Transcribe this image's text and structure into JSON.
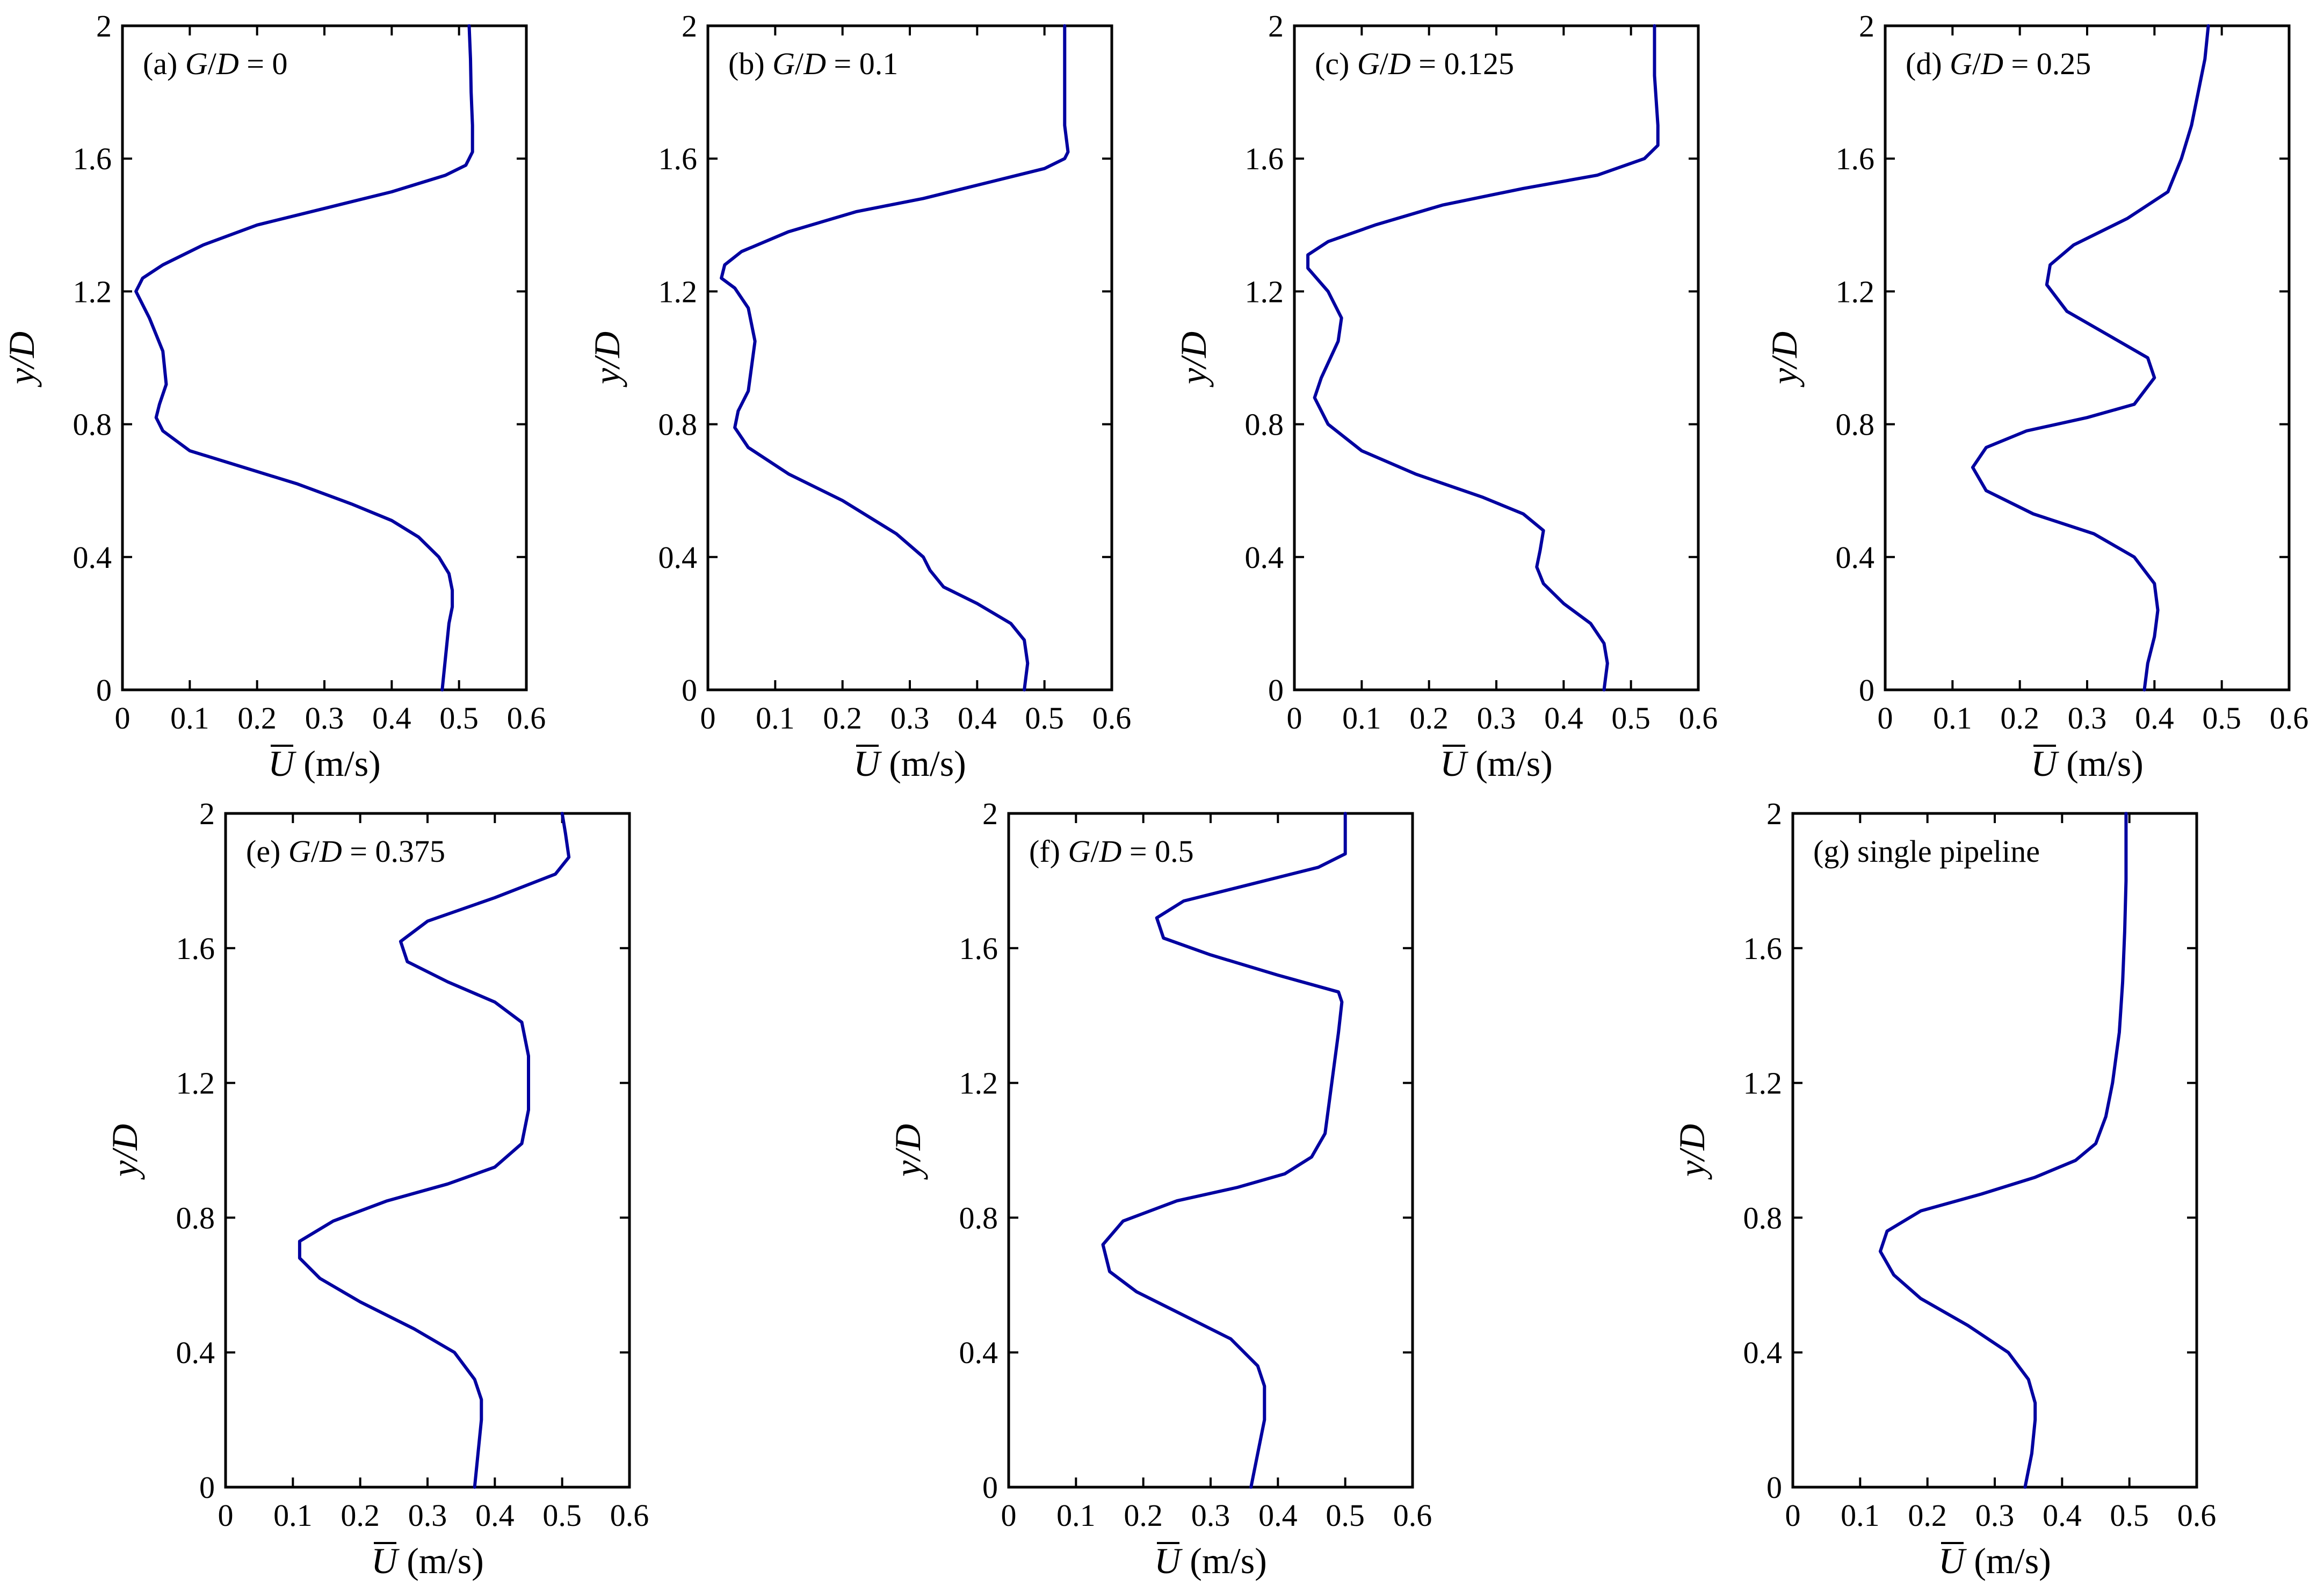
{
  "colors": {
    "curve": "#0000a0",
    "axes": "#000000"
  },
  "axis_text": {
    "x_unit": "(m/s)",
    "x_symbol": "U",
    "y_label": "y/D"
  },
  "chart_data": [
    {
      "type": "line",
      "title": "(a) G/D = 0",
      "title_prefix": "(a)",
      "title_suffix": "= 0",
      "xlabel": "Ū (m/s)",
      "ylabel": "y/D",
      "xlim": [
        0,
        0.6
      ],
      "ylim": [
        0,
        2
      ],
      "xticks": [
        "0",
        "0.1",
        "0.2",
        "0.3",
        "0.4",
        "0.5",
        "0.6"
      ],
      "yticks": [
        "0",
        "0.4",
        "0.8",
        "1.2",
        "1.6",
        "2"
      ],
      "grid": false,
      "series": [
        {
          "x": [
            0.475,
            0.48,
            0.485,
            0.49,
            0.49,
            0.485,
            0.47,
            0.44,
            0.4,
            0.34,
            0.26,
            0.18,
            0.1,
            0.06,
            0.05,
            0.055,
            0.065,
            0.06,
            0.04,
            0.02,
            0.03,
            0.06,
            0.12,
            0.2,
            0.3,
            0.4,
            0.48,
            0.51,
            0.515,
            0.52,
            0.52,
            0.518,
            0.517,
            0.515
          ],
          "y": [
            0.0,
            0.1,
            0.2,
            0.25,
            0.3,
            0.35,
            0.4,
            0.46,
            0.51,
            0.56,
            0.62,
            0.67,
            0.72,
            0.78,
            0.82,
            0.86,
            0.92,
            1.02,
            1.12,
            1.2,
            1.24,
            1.28,
            1.34,
            1.4,
            1.45,
            1.5,
            1.55,
            1.58,
            1.6,
            1.62,
            1.7,
            1.8,
            1.9,
            2.0
          ]
        }
      ]
    },
    {
      "type": "line",
      "title": "(b) G/D = 0.1",
      "title_prefix": "(b)",
      "title_suffix": "= 0.1",
      "xlabel": "Ū (m/s)",
      "ylabel": "y/D",
      "xlim": [
        0,
        0.6
      ],
      "ylim": [
        0,
        2
      ],
      "xticks": [
        "0",
        "0.1",
        "0.2",
        "0.3",
        "0.4",
        "0.5",
        "0.6"
      ],
      "yticks": [
        "0",
        "0.4",
        "0.8",
        "1.2",
        "1.6",
        "2"
      ],
      "grid": false,
      "series": [
        {
          "x": [
            0.47,
            0.475,
            0.47,
            0.45,
            0.4,
            0.35,
            0.33,
            0.32,
            0.28,
            0.2,
            0.12,
            0.06,
            0.04,
            0.045,
            0.06,
            0.07,
            0.06,
            0.04,
            0.02,
            0.025,
            0.05,
            0.12,
            0.22,
            0.32,
            0.42,
            0.5,
            0.53,
            0.535,
            0.53,
            0.53,
            0.53
          ],
          "y": [
            0.0,
            0.08,
            0.15,
            0.2,
            0.26,
            0.31,
            0.36,
            0.4,
            0.47,
            0.57,
            0.65,
            0.73,
            0.79,
            0.84,
            0.9,
            1.05,
            1.15,
            1.21,
            1.24,
            1.28,
            1.32,
            1.38,
            1.44,
            1.48,
            1.53,
            1.57,
            1.6,
            1.62,
            1.7,
            1.85,
            2.0
          ]
        }
      ]
    },
    {
      "type": "line",
      "title": "(c) G/D = 0.125",
      "title_prefix": "(c)",
      "title_suffix": "= 0.125",
      "xlabel": "Ū (m/s)",
      "ylabel": "y/D",
      "xlim": [
        0,
        0.6
      ],
      "ylim": [
        0,
        2
      ],
      "xticks": [
        "0",
        "0.1",
        "0.2",
        "0.3",
        "0.4",
        "0.5",
        "0.6"
      ],
      "yticks": [
        "0",
        "0.4",
        "0.8",
        "1.2",
        "1.6",
        "2"
      ],
      "grid": false,
      "series": [
        {
          "x": [
            0.46,
            0.465,
            0.46,
            0.44,
            0.4,
            0.37,
            0.36,
            0.365,
            0.37,
            0.34,
            0.28,
            0.18,
            0.1,
            0.05,
            0.03,
            0.04,
            0.065,
            0.07,
            0.05,
            0.02,
            0.02,
            0.05,
            0.12,
            0.22,
            0.34,
            0.45,
            0.52,
            0.54,
            0.54,
            0.535,
            0.535
          ],
          "y": [
            0.0,
            0.08,
            0.14,
            0.2,
            0.26,
            0.32,
            0.37,
            0.42,
            0.48,
            0.53,
            0.58,
            0.65,
            0.72,
            0.8,
            0.88,
            0.94,
            1.05,
            1.12,
            1.2,
            1.27,
            1.31,
            1.35,
            1.4,
            1.46,
            1.51,
            1.55,
            1.6,
            1.64,
            1.7,
            1.85,
            2.0
          ]
        }
      ]
    },
    {
      "type": "line",
      "title": "(d) G/D = 0.25",
      "title_prefix": "(d)",
      "title_suffix": "= 0.25",
      "xlabel": "Ū (m/s)",
      "ylabel": "y/D",
      "xlim": [
        0,
        0.6
      ],
      "ylim": [
        0,
        2
      ],
      "xticks": [
        "0",
        "0.1",
        "0.2",
        "0.3",
        "0.4",
        "0.5",
        "0.6"
      ],
      "yticks": [
        "0",
        "0.4",
        "0.8",
        "1.2",
        "1.6",
        "2"
      ],
      "grid": false,
      "series": [
        {
          "x": [
            0.385,
            0.39,
            0.4,
            0.405,
            0.4,
            0.37,
            0.31,
            0.22,
            0.15,
            0.13,
            0.15,
            0.21,
            0.3,
            0.37,
            0.4,
            0.39,
            0.33,
            0.27,
            0.24,
            0.245,
            0.28,
            0.36,
            0.42,
            0.44,
            0.455,
            0.465,
            0.475,
            0.48
          ],
          "y": [
            0.0,
            0.08,
            0.16,
            0.24,
            0.32,
            0.4,
            0.47,
            0.53,
            0.6,
            0.67,
            0.73,
            0.78,
            0.82,
            0.86,
            0.94,
            1.0,
            1.07,
            1.14,
            1.22,
            1.28,
            1.34,
            1.42,
            1.5,
            1.6,
            1.7,
            1.8,
            1.9,
            2.0
          ]
        }
      ]
    },
    {
      "type": "line",
      "title": "(e) G/D = 0.375",
      "title_prefix": "(e)",
      "title_suffix": "= 0.375",
      "xlabel": "Ū (m/s)",
      "ylabel": "y/D",
      "xlim": [
        0,
        0.6
      ],
      "ylim": [
        0,
        2
      ],
      "xticks": [
        "0",
        "0.1",
        "0.2",
        "0.3",
        "0.4",
        "0.5",
        "0.6"
      ],
      "yticks": [
        "0",
        "0.4",
        "0.8",
        "1.2",
        "1.6",
        "2"
      ],
      "grid": false,
      "series": [
        {
          "x": [
            0.37,
            0.375,
            0.38,
            0.38,
            0.37,
            0.34,
            0.28,
            0.2,
            0.14,
            0.11,
            0.11,
            0.16,
            0.24,
            0.33,
            0.4,
            0.44,
            0.45,
            0.45,
            0.44,
            0.4,
            0.33,
            0.27,
            0.26,
            0.3,
            0.4,
            0.49,
            0.51,
            0.505,
            0.5
          ],
          "y": [
            0.0,
            0.1,
            0.2,
            0.26,
            0.32,
            0.4,
            0.47,
            0.55,
            0.62,
            0.68,
            0.73,
            0.79,
            0.85,
            0.9,
            0.95,
            1.02,
            1.12,
            1.28,
            1.38,
            1.44,
            1.5,
            1.56,
            1.62,
            1.68,
            1.75,
            1.82,
            1.87,
            1.94,
            2.0
          ]
        }
      ]
    },
    {
      "type": "line",
      "title": "(f) G/D = 0.5",
      "title_prefix": "(f)",
      "title_suffix": "= 0.5",
      "xlabel": "Ū (m/s)",
      "ylabel": "y/D",
      "xlim": [
        0,
        0.6
      ],
      "ylim": [
        0,
        2
      ],
      "xticks": [
        "0",
        "0.1",
        "0.2",
        "0.3",
        "0.4",
        "0.5",
        "0.6"
      ],
      "yticks": [
        "0",
        "0.4",
        "0.8",
        "1.2",
        "1.6",
        "2"
      ],
      "grid": false,
      "series": [
        {
          "x": [
            0.36,
            0.37,
            0.38,
            0.38,
            0.37,
            0.33,
            0.26,
            0.19,
            0.15,
            0.14,
            0.17,
            0.25,
            0.34,
            0.41,
            0.45,
            0.47,
            0.48,
            0.49,
            0.495,
            0.49,
            0.4,
            0.3,
            0.23,
            0.22,
            0.26,
            0.36,
            0.46,
            0.5,
            0.5,
            0.5
          ],
          "y": [
            0.0,
            0.1,
            0.2,
            0.3,
            0.36,
            0.44,
            0.51,
            0.58,
            0.64,
            0.72,
            0.79,
            0.85,
            0.89,
            0.93,
            0.98,
            1.05,
            1.2,
            1.35,
            1.44,
            1.47,
            1.52,
            1.58,
            1.63,
            1.69,
            1.74,
            1.79,
            1.84,
            1.88,
            1.94,
            2.0
          ]
        }
      ]
    },
    {
      "type": "line",
      "title": "(g) single pipeline",
      "title_prefix": "(g) single pipeline",
      "title_suffix": "",
      "xlabel": "Ū (m/s)",
      "ylabel": "y/D",
      "xlim": [
        0,
        0.6
      ],
      "ylim": [
        0,
        2
      ],
      "xticks": [
        "0",
        "0.1",
        "0.2",
        "0.3",
        "0.4",
        "0.5",
        "0.6"
      ],
      "yticks": [
        "0",
        "0.4",
        "0.8",
        "1.2",
        "1.6",
        "2"
      ],
      "grid": false,
      "series": [
        {
          "x": [
            0.345,
            0.355,
            0.36,
            0.36,
            0.35,
            0.32,
            0.26,
            0.19,
            0.15,
            0.13,
            0.14,
            0.19,
            0.28,
            0.36,
            0.42,
            0.45,
            0.465,
            0.475,
            0.485,
            0.49,
            0.493,
            0.495,
            0.495
          ],
          "y": [
            0.0,
            0.1,
            0.2,
            0.25,
            0.32,
            0.4,
            0.48,
            0.56,
            0.63,
            0.7,
            0.76,
            0.82,
            0.87,
            0.92,
            0.97,
            1.02,
            1.1,
            1.2,
            1.35,
            1.5,
            1.65,
            1.8,
            2.0
          ]
        }
      ]
    }
  ]
}
